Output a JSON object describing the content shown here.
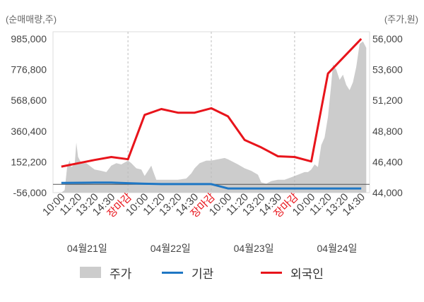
{
  "chart_data": {
    "type": "line",
    "y_left_label": "(순매매량,주)",
    "y_right_label": "(주가,원)",
    "y_left_ticks": [
      "985,000",
      "776,800",
      "568,600",
      "360,400",
      "152,200",
      "-56,000"
    ],
    "y_right_ticks": [
      "56,000",
      "53,600",
      "51,200",
      "48,800",
      "46,400",
      "44,000"
    ],
    "y_left_range": [
      -56000,
      985000
    ],
    "y_right_range": [
      44000,
      56000
    ],
    "x_tick_labels": [
      {
        "text": "10:00",
        "red": false
      },
      {
        "text": "11:20",
        "red": false
      },
      {
        "text": "13:20",
        "red": false
      },
      {
        "text": "14:30",
        "red": false
      },
      {
        "text": "장마감",
        "red": true
      },
      {
        "text": "10:00",
        "red": false
      },
      {
        "text": "11:20",
        "red": false
      },
      {
        "text": "13:20",
        "red": false
      },
      {
        "text": "14:30",
        "red": false
      },
      {
        "text": "장마감",
        "red": true
      },
      {
        "text": "10:00",
        "red": false
      },
      {
        "text": "11:20",
        "red": false
      },
      {
        "text": "13:20",
        "red": false
      },
      {
        "text": "14:30",
        "red": false
      },
      {
        "text": "장마감",
        "red": true
      },
      {
        "text": "10:00",
        "red": false
      },
      {
        "text": "11:20",
        "red": false
      },
      {
        "text": "13:20",
        "red": false
      },
      {
        "text": "14:30",
        "red": false
      }
    ],
    "days": [
      "04월21일",
      "04월22일",
      "04월23일",
      "04월24일"
    ],
    "legend": [
      {
        "name": "주가",
        "color": "#cccccc",
        "kind": "area"
      },
      {
        "name": "기관",
        "color": "#1f77c4",
        "kind": "line"
      },
      {
        "name": "외국인",
        "color": "#e8141b",
        "kind": "line"
      }
    ],
    "series": [
      {
        "name": "외국인",
        "axis": "left",
        "color": "#e8141b",
        "values": [
          [
            0,
            120000
          ],
          [
            2,
            165000
          ],
          [
            3,
            185000
          ],
          [
            4,
            170000
          ],
          [
            5,
            470000
          ],
          [
            6,
            510000
          ],
          [
            7,
            485000
          ],
          [
            8,
            485000
          ],
          [
            9,
            515000
          ],
          [
            10,
            460000
          ],
          [
            11,
            300000
          ],
          [
            12,
            250000
          ],
          [
            13,
            190000
          ],
          [
            14,
            185000
          ],
          [
            15,
            155000
          ],
          [
            16,
            750000
          ],
          [
            18,
            985000
          ]
        ]
      },
      {
        "name": "기관",
        "axis": "left",
        "color": "#1f77c4",
        "values": [
          [
            0,
            10000
          ],
          [
            2,
            12000
          ],
          [
            3,
            12000
          ],
          [
            4,
            8000
          ],
          [
            5,
            4000
          ],
          [
            6,
            2000
          ],
          [
            7,
            2000
          ],
          [
            8,
            2000
          ],
          [
            9,
            2000
          ],
          [
            10,
            -28000
          ],
          [
            12,
            -28000
          ],
          [
            14,
            -28000
          ],
          [
            16,
            -28000
          ],
          [
            18,
            -28000
          ]
        ]
      },
      {
        "name": "주가",
        "axis": "right",
        "color": "#cccccc",
        "values": [
          [
            0,
            44000
          ],
          [
            0.2,
            44200
          ],
          [
            0.35,
            46000
          ],
          [
            0.5,
            46500
          ],
          [
            0.6,
            46000
          ],
          [
            0.8,
            46200
          ],
          [
            0.9,
            47900
          ],
          [
            1.0,
            46800
          ],
          [
            1.2,
            46300
          ],
          [
            1.5,
            46300
          ],
          [
            1.8,
            46000
          ],
          [
            2.0,
            45800
          ],
          [
            2.4,
            45700
          ],
          [
            2.7,
            45600
          ],
          [
            3.0,
            46100
          ],
          [
            3.3,
            46300
          ],
          [
            3.6,
            46200
          ],
          [
            4.0,
            46500
          ],
          [
            4.2,
            46300
          ],
          [
            4.5,
            45900
          ],
          [
            4.8,
            45800
          ],
          [
            5.0,
            45300
          ],
          [
            5.2,
            45700
          ],
          [
            5.4,
            46100
          ],
          [
            5.5,
            45700
          ],
          [
            5.7,
            45000
          ],
          [
            6.0,
            45000
          ],
          [
            6.5,
            45000
          ],
          [
            7.0,
            45000
          ],
          [
            7.5,
            45100
          ],
          [
            7.8,
            45500
          ],
          [
            8.0,
            45900
          ],
          [
            8.3,
            46300
          ],
          [
            8.7,
            46500
          ],
          [
            9.0,
            46500
          ],
          [
            9.4,
            46600
          ],
          [
            9.8,
            46700
          ],
          [
            10.0,
            46600
          ],
          [
            10.3,
            46400
          ],
          [
            10.6,
            46200
          ],
          [
            11.0,
            45900
          ],
          [
            11.4,
            45700
          ],
          [
            11.8,
            45400
          ],
          [
            12.0,
            44800
          ],
          [
            12.3,
            44700
          ],
          [
            12.6,
            44900
          ],
          [
            13.0,
            45000
          ],
          [
            13.4,
            45000
          ],
          [
            13.8,
            45200
          ],
          [
            14.2,
            45400
          ],
          [
            14.6,
            45600
          ],
          [
            14.8,
            45600
          ],
          [
            15.0,
            45800
          ],
          [
            15.2,
            46200
          ],
          [
            15.4,
            46000
          ],
          [
            15.6,
            47700
          ],
          [
            15.8,
            48300
          ],
          [
            16.0,
            49900
          ],
          [
            16.2,
            52500
          ],
          [
            16.3,
            54000
          ],
          [
            16.5,
            53600
          ],
          [
            16.7,
            52800
          ],
          [
            16.9,
            53200
          ],
          [
            17.1,
            52400
          ],
          [
            17.3,
            52000
          ],
          [
            17.5,
            52600
          ],
          [
            17.7,
            53800
          ],
          [
            17.9,
            55600
          ],
          [
            18.1,
            55800
          ],
          [
            18.3,
            55300
          ]
        ]
      }
    ]
  }
}
